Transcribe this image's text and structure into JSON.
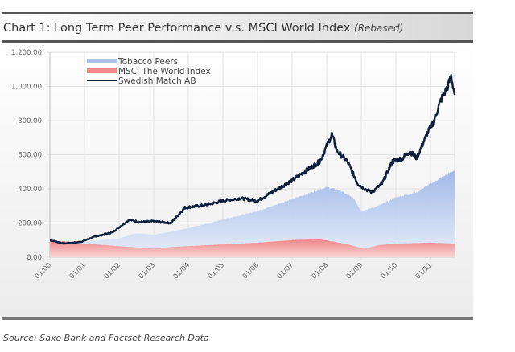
{
  "chart_data": {
    "type": "line",
    "title": "Chart 1: Long Term Peer Performance v.s. MSCI World Index",
    "title_note": "(Rebased)",
    "source": "Source: Saxo Bank and Factset Research Data",
    "xlabel": "",
    "ylabel": "",
    "ylim": [
      0,
      1200
    ],
    "xlim": [
      2000,
      2011.7
    ],
    "y_ticks": [
      "0.00",
      "200.00",
      "400.00",
      "600.00",
      "800.00",
      "1,000.00",
      "1,200.00"
    ],
    "x_ticks": [
      "01/00",
      "01/01",
      "01/02",
      "01/03",
      "01/04",
      "01/05",
      "01/06",
      "01/07",
      "01/08",
      "01/09",
      "01/10",
      "01/11"
    ],
    "grid": true,
    "legend_position": "top-left",
    "series": [
      {
        "name": "Tobacco Peers",
        "style": "area",
        "color": "#a9c0ea",
        "x": [
          2000,
          2001,
          2002,
          2002.5,
          2003,
          2004,
          2005,
          2006,
          2007,
          2008,
          2008.4,
          2008.8,
          2009.0,
          2009.5,
          2010,
          2010.6,
          2011,
          2011.7
        ],
        "y": [
          100,
          90,
          110,
          140,
          130,
          170,
          220,
          270,
          340,
          410,
          390,
          340,
          270,
          300,
          350,
          380,
          430,
          510
        ]
      },
      {
        "name": "MSCI The World Index",
        "style": "area",
        "color": "#f08c8c",
        "x": [
          2000,
          2001,
          2002,
          2003,
          2003.5,
          2004,
          2005,
          2006,
          2007,
          2007.8,
          2008.5,
          2009.1,
          2009.5,
          2010,
          2011,
          2011.7
        ],
        "y": [
          100,
          80,
          65,
          50,
          60,
          65,
          75,
          85,
          100,
          105,
          80,
          50,
          70,
          80,
          85,
          80
        ]
      },
      {
        "name": "Swedish Match AB",
        "style": "line",
        "color": "#0d1f3c",
        "x": [
          2000,
          2000.4,
          2000.9,
          2001.3,
          2001.8,
          2002.3,
          2002.6,
          2003.0,
          2003.5,
          2003.9,
          2004.5,
          2005.0,
          2005.5,
          2006.0,
          2006.5,
          2007.0,
          2007.5,
          2007.8,
          2008.0,
          2008.15,
          2008.3,
          2008.6,
          2008.9,
          2009.1,
          2009.3,
          2009.6,
          2009.9,
          2010.2,
          2010.4,
          2010.6,
          2010.9,
          2011.1,
          2011.3,
          2011.5,
          2011.6,
          2011.7
        ],
        "y": [
          100,
          80,
          90,
          120,
          145,
          220,
          205,
          210,
          200,
          290,
          305,
          330,
          345,
          330,
          390,
          450,
          520,
          560,
          650,
          720,
          620,
          560,
          430,
          400,
          380,
          430,
          560,
          580,
          620,
          580,
          720,
          800,
          920,
          1000,
          1060,
          950
        ]
      }
    ]
  }
}
